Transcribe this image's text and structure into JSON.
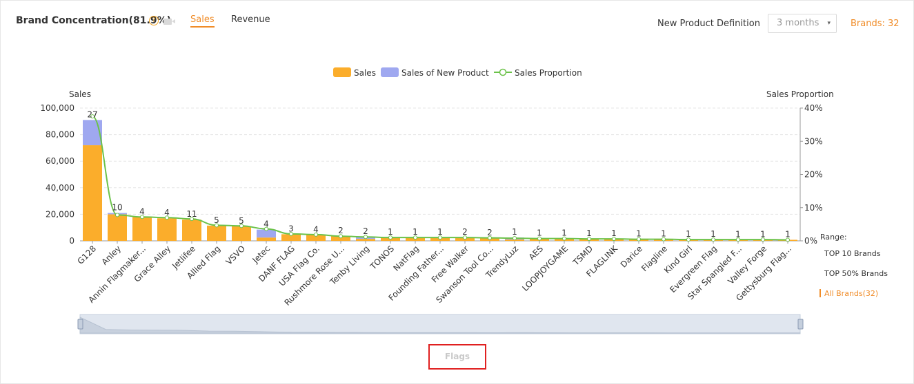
{
  "header": {
    "title": "Brand Concentration(81.9%)",
    "help_glyph": "?",
    "tabs": [
      {
        "label": "Sales",
        "active": true
      },
      {
        "label": "Revenue",
        "active": false
      }
    ],
    "new_product_label": "New Product Definition",
    "period_select": "3 months",
    "select_arrow": "▾",
    "brands_count": "Brands: 32"
  },
  "colors": {
    "sales": "#fbad2b",
    "new_product": "#9fa8f0",
    "proportion": "#6cc24a",
    "accent": "#f08c28"
  },
  "range": {
    "label": "Range:",
    "options": [
      {
        "label": "TOP 10 Brands",
        "active": false
      },
      {
        "label": "TOP 50% Brands",
        "active": false
      },
      {
        "label": "All Brands(32)",
        "active": true
      }
    ]
  },
  "category_label": "Flags",
  "chart_data": {
    "type": "bar",
    "legend": [
      "Sales",
      "Sales of New Product",
      "Sales Proportion"
    ],
    "legend_position": "top-center",
    "ylabel": "Sales",
    "ylabel_right": "Sales Proportion",
    "ylim": [
      0,
      100000
    ],
    "y_ticks": [
      "0",
      "20,000",
      "40,000",
      "60,000",
      "80,000",
      "100,000"
    ],
    "ylim_right": [
      0,
      40
    ],
    "y_ticks_right": [
      "0%",
      "10%",
      "20%",
      "30%",
      "40%"
    ],
    "grid": true,
    "categories": [
      "G128",
      "Anley",
      "Annin Flagmaker...",
      "Grace Alley",
      "Jetlifee",
      "Allied Flag",
      "VSVO",
      "Jetec",
      "DANF FLAG",
      "USA Flag Co.",
      "Rushmore Rose U...",
      "Tenby Living",
      "TONOS",
      "NatFlag",
      "Founding Father...",
      "Free Walker",
      "Swanson Tool Co...",
      "TrendyLuz",
      "AES",
      "LOOPJOYGAME",
      "TSMD",
      "FLAGLINK",
      "Darice",
      "Flagline",
      "Kind Girl",
      "Evergreen Flag",
      "Star Spangled F...",
      "Valley Forge",
      "Gettysburg Flag..."
    ],
    "series": [
      {
        "name": "Sales",
        "values": [
          72000,
          20000,
          18000,
          17000,
          16000,
          11500,
          11000,
          2500,
          5000,
          4500,
          3500,
          1500,
          2500,
          2500,
          2500,
          2500,
          2200,
          1000,
          1800,
          1700,
          1500,
          1500,
          1300,
          1200,
          1100,
          1000,
          900,
          900,
          800
        ]
      },
      {
        "name": "Sales of New Product",
        "values": [
          19000,
          1000,
          0,
          0,
          0,
          0,
          0,
          6000,
          0,
          0,
          0,
          1500,
          0,
          0,
          0,
          0,
          0,
          1500,
          0,
          0,
          0,
          0,
          0,
          0,
          0,
          0,
          0,
          0,
          0
        ]
      },
      {
        "name": "Sales Proportion",
        "values": [
          37.5,
          7.8,
          7.2,
          7.0,
          6.6,
          4.7,
          4.5,
          3.6,
          2.1,
          1.9,
          1.4,
          1.2,
          1.0,
          1.0,
          1.0,
          1.0,
          0.9,
          0.8,
          0.7,
          0.7,
          0.6,
          0.6,
          0.5,
          0.5,
          0.4,
          0.4,
          0.4,
          0.4,
          0.3
        ]
      }
    ],
    "bar_labels": [
      "27",
      "10",
      "4",
      "4",
      "11",
      "5",
      "5",
      "4",
      "3",
      "4",
      "2",
      "2",
      "1",
      "1",
      "1",
      "2",
      "2",
      "1",
      "1",
      "1",
      "1",
      "1",
      "1",
      "1",
      "1",
      "1",
      "1",
      "1",
      "1"
    ]
  }
}
